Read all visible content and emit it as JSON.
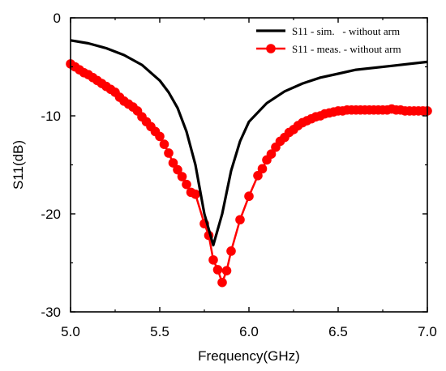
{
  "chart_data": {
    "type": "line",
    "xlabel": "Frequency(GHz)",
    "ylabel": "S11(dB)",
    "xlim": [
      5.0,
      7.0
    ],
    "ylim": [
      -30,
      0
    ],
    "xticks": [
      5.0,
      5.5,
      6.0,
      6.5,
      7.0
    ],
    "xtick_labels": [
      "5.0",
      "5.5",
      "6.0",
      "6.5",
      "7.0"
    ],
    "yticks": [
      0,
      -10,
      -20,
      -30
    ],
    "ytick_labels": [
      "0",
      "-10",
      "-20",
      "-30"
    ],
    "grid": false,
    "legend_position": "top-right",
    "series": [
      {
        "name": "S11 - sim.   - without arm",
        "color": "#000000",
        "marker": "none",
        "x": [
          5.0,
          5.1,
          5.2,
          5.3,
          5.4,
          5.5,
          5.55,
          5.6,
          5.65,
          5.7,
          5.75,
          5.8,
          5.85,
          5.9,
          5.95,
          6.0,
          6.1,
          6.2,
          6.3,
          6.4,
          6.5,
          6.6,
          6.8,
          7.0
        ],
        "y": [
          -2.3,
          -2.6,
          -3.1,
          -3.8,
          -4.8,
          -6.4,
          -7.6,
          -9.2,
          -11.6,
          -15.0,
          -20.0,
          -23.2,
          -20.0,
          -15.6,
          -12.6,
          -10.6,
          -8.7,
          -7.5,
          -6.7,
          -6.1,
          -5.7,
          -5.3,
          -4.9,
          -4.5
        ]
      },
      {
        "name": "S11 - meas. - without arm",
        "color": "#ff0000",
        "marker": "circle",
        "x": [
          5.0,
          5.025,
          5.05,
          5.075,
          5.1,
          5.125,
          5.15,
          5.175,
          5.2,
          5.225,
          5.25,
          5.275,
          5.3,
          5.325,
          5.35,
          5.375,
          5.4,
          5.425,
          5.45,
          5.475,
          5.5,
          5.525,
          5.55,
          5.575,
          5.6,
          5.625,
          5.65,
          5.675,
          5.7,
          5.75,
          5.775,
          5.8,
          5.825,
          5.85,
          5.875,
          5.9,
          5.95,
          6.0,
          6.05,
          6.075,
          6.1,
          6.125,
          6.15,
          6.175,
          6.2,
          6.225,
          6.25,
          6.275,
          6.3,
          6.325,
          6.35,
          6.375,
          6.4,
          6.425,
          6.45,
          6.475,
          6.5,
          6.525,
          6.55,
          6.575,
          6.6,
          6.625,
          6.65,
          6.675,
          6.7,
          6.725,
          6.75,
          6.775,
          6.8,
          6.825,
          6.85,
          6.875,
          6.9,
          6.925,
          6.95,
          6.975,
          7.0
        ],
        "y": [
          -4.7,
          -5.0,
          -5.3,
          -5.6,
          -5.8,
          -6.1,
          -6.4,
          -6.7,
          -7.0,
          -7.3,
          -7.6,
          -8.1,
          -8.5,
          -8.8,
          -9.1,
          -9.5,
          -10.1,
          -10.6,
          -11.1,
          -11.6,
          -12.1,
          -12.9,
          -13.8,
          -14.8,
          -15.5,
          -16.2,
          -17.0,
          -17.8,
          -18.0,
          -21.0,
          -22.2,
          -24.7,
          -25.7,
          -27.0,
          -25.8,
          -23.8,
          -20.6,
          -18.2,
          -16.1,
          -15.4,
          -14.5,
          -13.9,
          -13.2,
          -12.6,
          -12.2,
          -11.7,
          -11.4,
          -11.0,
          -10.7,
          -10.5,
          -10.3,
          -10.1,
          -10.0,
          -9.8,
          -9.7,
          -9.6,
          -9.5,
          -9.5,
          -9.4,
          -9.4,
          -9.4,
          -9.4,
          -9.4,
          -9.4,
          -9.4,
          -9.4,
          -9.4,
          -9.4,
          -9.3,
          -9.4,
          -9.4,
          -9.5,
          -9.5,
          -9.5,
          -9.5,
          -9.5,
          -9.5
        ]
      }
    ]
  }
}
